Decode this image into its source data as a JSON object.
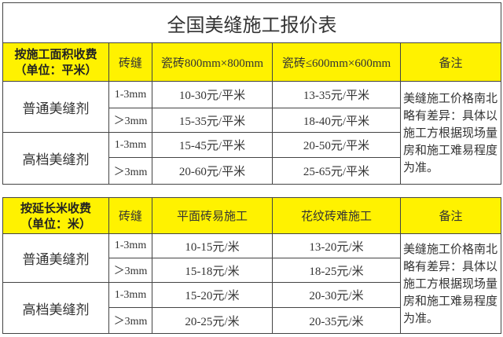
{
  "title": "全国美缝施工报价表",
  "colors": {
    "header_bg": "#fff200",
    "border": "#444444"
  },
  "table_area": {
    "header": {
      "line1": "按施工面积收费",
      "line2": "（单位：平米）",
      "gap": "砖缝",
      "col1": "瓷砖800mm×800mm",
      "col2": "瓷砖≤600mm×600mm",
      "note": "备注"
    },
    "groups": [
      {
        "name": "普通美缝剂",
        "rows": [
          {
            "gap": "1-3mm",
            "col1": "10-30元/平米",
            "col2": "13-35元/平米"
          },
          {
            "gap": "＞3mm",
            "col1": "15-35元/平米",
            "col2": "18-40元/平米"
          }
        ]
      },
      {
        "name": "高档美缝剂",
        "rows": [
          {
            "gap": "1-3mm",
            "col1": "15-45元/平米",
            "col2": "20-50元/平米"
          },
          {
            "gap": "＞3mm",
            "col1": "20-60元/平米",
            "col2": "25-65元/平米"
          }
        ]
      }
    ],
    "note": "美缝施工价格南北略有差异：具体以施工方根据现场量房和施工难易程度为准。"
  },
  "table_length": {
    "header": {
      "line1": "按延长米收费",
      "line2": "（单位：米）",
      "gap": "砖缝",
      "col1": "平面砖易施工",
      "col2": "花纹砖难施工",
      "note": "备注"
    },
    "groups": [
      {
        "name": "普通美缝剂",
        "rows": [
          {
            "gap": "1-3mm",
            "col1": "10-15元/米",
            "col2": "13-20元/米"
          },
          {
            "gap": "＞3mm",
            "col1": "15-18元/米",
            "col2": "18-25元/米"
          }
        ]
      },
      {
        "name": "高档美缝剂",
        "rows": [
          {
            "gap": "1-3mm",
            "col1": "15-20元/米",
            "col2": "20-30元/米"
          },
          {
            "gap": "＞3mm",
            "col1": "20-25元/米",
            "col2": "20-35元/米"
          }
        ]
      }
    ],
    "note": "美缝施工价格南北略有差异：具体以施工方根据现场量房和施工难易程度为准。"
  }
}
